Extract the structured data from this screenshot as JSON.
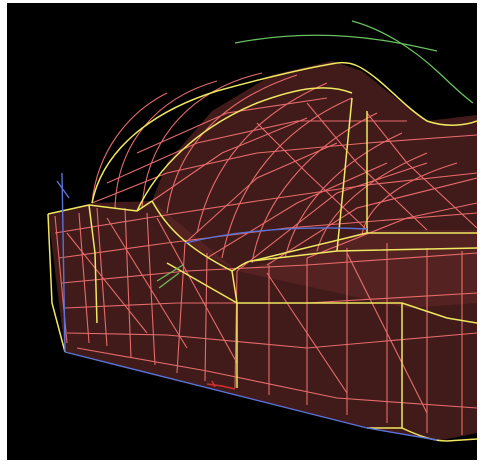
{
  "viewport": {
    "background": "#000000",
    "colors": {
      "outline": "#f0e860",
      "mesh": "#f07070",
      "fill": "#5a2424",
      "axis_blue": "#5a72d8",
      "axis_green": "#69c060",
      "marker_red": "#d03030"
    }
  }
}
